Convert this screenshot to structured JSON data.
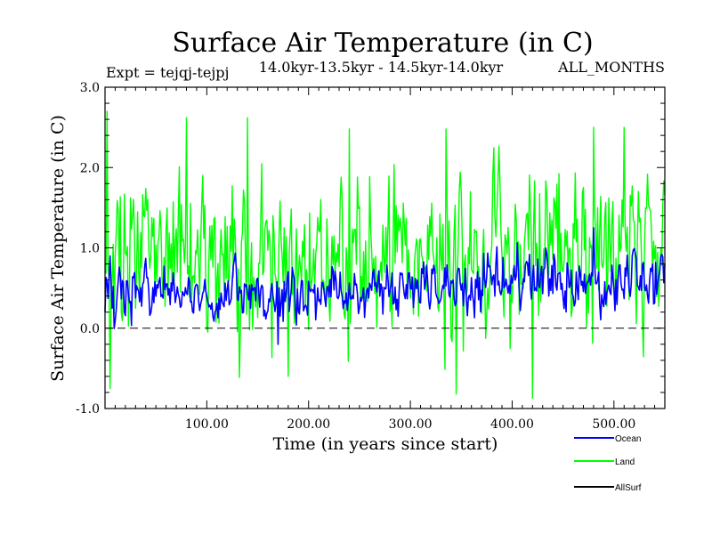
{
  "chart_data": {
    "type": "line",
    "title": "Surface Air Temperature (in C)",
    "subtitle": "14.0kyr-13.5kyr - 14.5kyr-14.0kyr",
    "expt_label": "Expt = tejqj-tejpj",
    "months_label": "ALL_MONTHS",
    "xlabel": "Time (in years since start)",
    "ylabel": "Surface Air Temperature (in C)",
    "xlim": [
      0,
      550
    ],
    "ylim": [
      -1.0,
      3.0
    ],
    "xticks": [
      100,
      200,
      300,
      400,
      500
    ],
    "xtick_labels": [
      "100.00",
      "200.00",
      "300.00",
      "400.00",
      "500.00"
    ],
    "yticks": [
      -1.0,
      0.0,
      1.0,
      2.0,
      3.0
    ],
    "ytick_labels": [
      "-1.0",
      "0.0",
      "1.0",
      "2.0",
      "3.0"
    ],
    "zero_line": 0.0,
    "colors": {
      "Ocean": "#0000ff",
      "Land": "#00ff00",
      "AllSurf": "#000000",
      "axis": "#000000"
    },
    "series": [
      {
        "name": "Land",
        "mean": [
          [
            0,
            0.9
          ],
          [
            100,
            0.92
          ],
          [
            200,
            0.86
          ],
          [
            300,
            0.93
          ],
          [
            400,
            0.95
          ],
          [
            550,
            1.0
          ]
        ],
        "stddev": 0.5,
        "extremes": [
          [
            2,
            2.7
          ],
          [
            5,
            -0.75
          ],
          [
            80,
            2.62
          ],
          [
            140,
            2.62
          ],
          [
            180,
            -0.6
          ],
          [
            240,
            2.48
          ],
          [
            335,
            2.48
          ],
          [
            345,
            -0.82
          ],
          [
            420,
            -0.87
          ],
          [
            480,
            2.5
          ],
          [
            510,
            2.5
          ]
        ]
      },
      {
        "name": "Ocean",
        "mean": [
          [
            0,
            0.45
          ],
          [
            100,
            0.42
          ],
          [
            200,
            0.4
          ],
          [
            300,
            0.5
          ],
          [
            400,
            0.55
          ],
          [
            500,
            0.62
          ],
          [
            550,
            0.65
          ]
        ],
        "stddev": 0.18,
        "extremes": [
          [
            5,
            0.9
          ],
          [
            170,
            -0.2
          ],
          [
            480,
            1.25
          ]
        ]
      },
      {
        "name": "AllSurf",
        "values": []
      }
    ],
    "legend": [
      "Ocean",
      "Land",
      "AllSurf"
    ],
    "legend_position": "bottom-right"
  }
}
